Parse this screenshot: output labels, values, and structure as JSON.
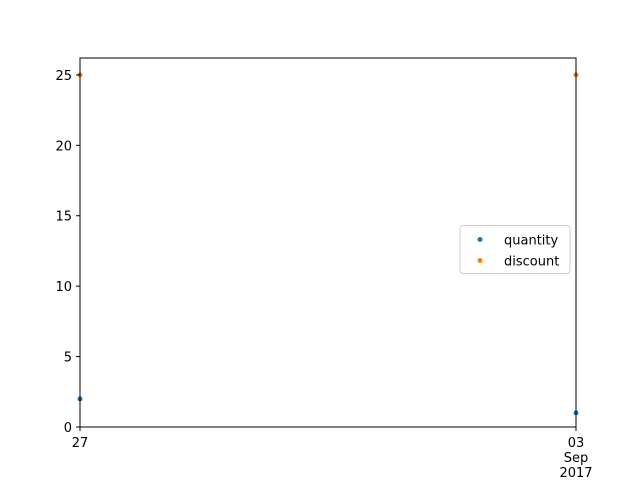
{
  "chart_data": {
    "type": "scatter",
    "title": "",
    "xlabel": "",
    "ylabel": "",
    "x": [
      "2017-08-27",
      "2017-09-03"
    ],
    "x_tick_labels": [
      {
        "x": "2017-08-27",
        "lines": [
          "27"
        ]
      },
      {
        "x": "2017-09-03",
        "lines": [
          "03",
          "Sep",
          "2017"
        ]
      }
    ],
    "ylim": [
      0,
      26.2
    ],
    "yticks": [
      0,
      5,
      10,
      15,
      20,
      25
    ],
    "grid": false,
    "legend_position": "center-right",
    "series": [
      {
        "name": "quantity",
        "color": "#1f77b4",
        "values": [
          2,
          1
        ]
      },
      {
        "name": "discount",
        "color": "#ff7f0e",
        "values": [
          25,
          25
        ]
      }
    ]
  }
}
